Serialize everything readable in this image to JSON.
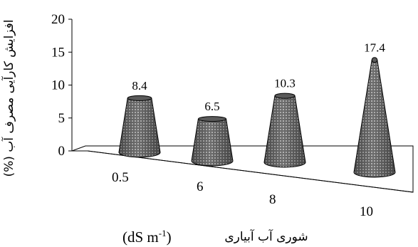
{
  "chart_data": {
    "type": "bar",
    "bar_shape": "cone-3d",
    "categories": [
      "0.5",
      "6",
      "8",
      "10"
    ],
    "values": [
      8.4,
      6.5,
      10.3,
      17.4
    ],
    "data_labels": [
      "8.4",
      "6.5",
      "10.3",
      "17.4"
    ],
    "ylabel": "افزایش کارآیی مصرف آب (%)",
    "xlabel": "شوری آب آبیاری",
    "xlabel_unit": "(dS m",
    "xlabel_unit_sup": "-1",
    "xlabel_unit_close": ")",
    "ylim": [
      0,
      20
    ],
    "yticks": [
      "0",
      "5",
      "10",
      "15",
      "20"
    ],
    "grid": false,
    "legend": "none",
    "colors": {
      "bar_fill": "#7a7a7a",
      "bar_dots": "#e8e8e8",
      "axis": "#000000"
    }
  }
}
